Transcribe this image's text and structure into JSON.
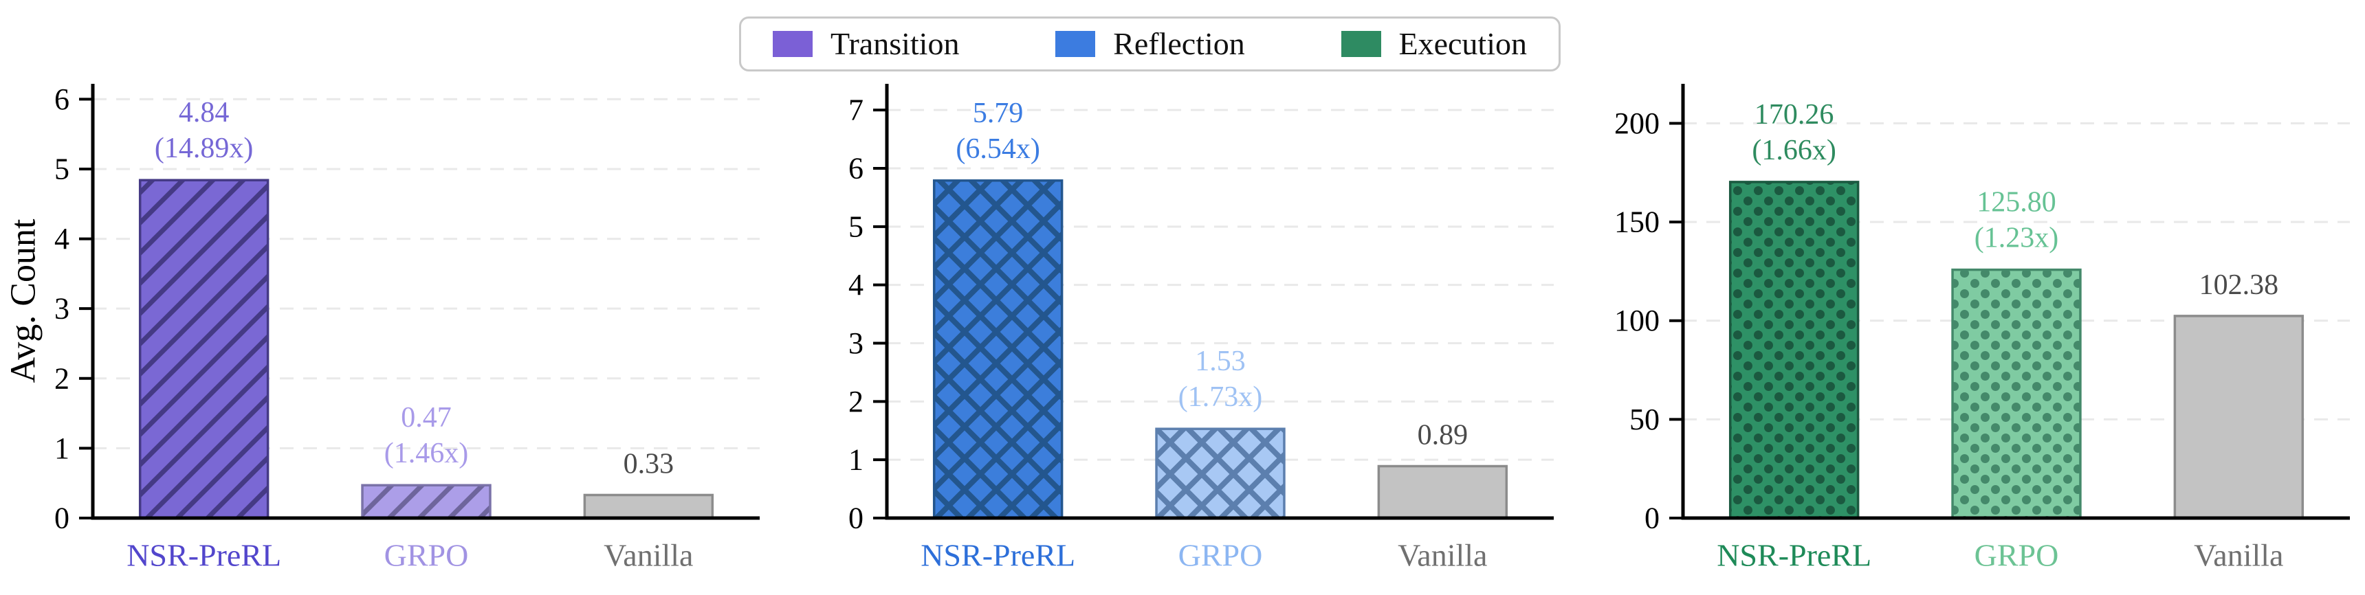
{
  "figure": {
    "background": "#ffffff"
  },
  "legend": {
    "items": [
      {
        "label": "Transition",
        "color": "#7B60D6"
      },
      {
        "label": "Reflection",
        "color": "#3C7CE0"
      },
      {
        "label": "Execution",
        "color": "#2E8B62"
      }
    ]
  },
  "chart_data": [
    {
      "type": "bar",
      "name": "Transition",
      "ylabel": "Avg. Count",
      "categories": [
        "NSR-PreRL",
        "GRPO",
        "Vanilla"
      ],
      "values": [
        4.84,
        0.47,
        0.33
      ],
      "value_labels": [
        [
          "4.84",
          "(14.89x)"
        ],
        [
          "0.47",
          "(1.46x)"
        ],
        [
          "0.33"
        ]
      ],
      "ylim": [
        0,
        6.22
      ],
      "yticks": [
        0,
        1,
        2,
        3,
        4,
        5,
        6
      ],
      "grid": "dashed-horizontal",
      "legend_position": "top-center",
      "bar_styles": [
        {
          "hatch": "diagonal",
          "fill": "#7A68D4",
          "pattern_color": "#453A85",
          "edge": "#453A85",
          "label_color": "#7668D6",
          "tick_color": "#5246CC"
        },
        {
          "hatch": "diagonal",
          "fill": "#AC9EE8",
          "pattern_color": "#6E659C",
          "edge": "#7A72A8",
          "label_color": "#A89AE9",
          "tick_color": "#A193E3"
        },
        {
          "hatch": null,
          "fill": "#C3C3C3",
          "pattern_color": null,
          "edge": "#8C8C8C",
          "label_color": "#4A4A4A",
          "tick_color": "#707070"
        }
      ]
    },
    {
      "type": "bar",
      "name": "Reflection",
      "ylabel": "",
      "categories": [
        "NSR-PreRL",
        "GRPO",
        "Vanilla"
      ],
      "values": [
        5.79,
        1.53,
        0.89
      ],
      "value_labels": [
        [
          "5.79",
          "(6.54x)"
        ],
        [
          "1.53",
          "(1.73x)"
        ],
        [
          "0.89"
        ]
      ],
      "ylim": [
        0,
        7.45
      ],
      "yticks": [
        0,
        1,
        2,
        3,
        4,
        5,
        6,
        7
      ],
      "grid": "dashed-horizontal",
      "bar_styles": [
        {
          "hatch": "crosshatch",
          "fill": "#3C7EDB",
          "pattern_color": "#23568E",
          "edge": "#23568E",
          "label_color": "#3B7CE2",
          "tick_color": "#2D6FD9"
        },
        {
          "hatch": "crosshatch",
          "fill": "#A8C8F4",
          "pattern_color": "#5C7FAE",
          "edge": "#5C7FAE",
          "label_color": "#9FC2F4",
          "tick_color": "#8CB6F2"
        },
        {
          "hatch": null,
          "fill": "#C3C3C3",
          "pattern_color": null,
          "edge": "#8C8C8C",
          "label_color": "#4A4A4A",
          "tick_color": "#707070"
        }
      ]
    },
    {
      "type": "bar",
      "name": "Execution",
      "ylabel": "",
      "categories": [
        "NSR-PreRL",
        "GRPO",
        "Vanilla"
      ],
      "values": [
        170.26,
        125.8,
        102.38
      ],
      "value_labels": [
        [
          "170.26",
          "(1.66x)"
        ],
        [
          "125.80",
          "(1.23x)"
        ],
        [
          "102.38"
        ]
      ],
      "ylim": [
        0,
        220
      ],
      "yticks": [
        0,
        50,
        100,
        150,
        200
      ],
      "grid": "dashed-horizontal",
      "bar_styles": [
        {
          "hatch": "dots",
          "fill": "#2E9166",
          "pattern_color": "#1B5940",
          "edge": "#1B5940",
          "label_color": "#2E8B5F",
          "tick_color": "#1E8A58"
        },
        {
          "hatch": "dots",
          "fill": "#7FCBA2",
          "pattern_color": "#44896A",
          "edge": "#44896A",
          "label_color": "#66C294",
          "tick_color": "#6CC394"
        },
        {
          "hatch": null,
          "fill": "#C3C3C3",
          "pattern_color": null,
          "edge": "#8C8C8C",
          "label_color": "#4A4A4A",
          "tick_color": "#707070"
        }
      ]
    }
  ]
}
